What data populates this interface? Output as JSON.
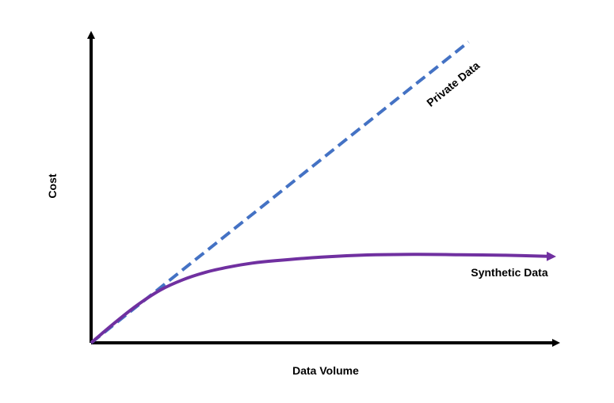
{
  "chart_data": {
    "type": "line",
    "title": "",
    "xlabel": "Data Volume",
    "ylabel": "Cost",
    "xlim": [
      0,
      100
    ],
    "ylim": [
      0,
      100
    ],
    "grid": false,
    "legend": "none",
    "series": [
      {
        "name": "Private Data",
        "color": "#4472C4",
        "style": "dashed",
        "x": [
          0,
          82
        ],
        "y": [
          0,
          100
        ]
      },
      {
        "name": "Synthetic Data",
        "color": "#7030A0",
        "style": "solid",
        "x": [
          0,
          5,
          10,
          15,
          20,
          25,
          30,
          35,
          40,
          50,
          60,
          70,
          80,
          90,
          100
        ],
        "y": [
          0,
          6.5,
          12.5,
          17.5,
          21.0,
          23.5,
          25.2,
          26.5,
          27.3,
          28.5,
          29.2,
          29.4,
          29.3,
          29.1,
          28.7
        ]
      }
    ]
  }
}
